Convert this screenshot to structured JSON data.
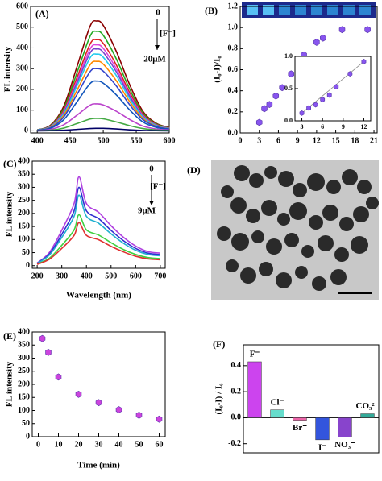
{
  "chart_data": [
    {
      "type": "line",
      "panel_label": "(A)",
      "ylabel": "FL intensity",
      "annotations": [
        "0",
        "[F⁻]",
        "20μM"
      ],
      "x": [
        400,
        420,
        440,
        460,
        480,
        490,
        500,
        520,
        540,
        560,
        580,
        600
      ],
      "xlim": [
        390,
        600
      ],
      "xticks": [
        400,
        450,
        500,
        550,
        600
      ],
      "ylim": [
        -10,
        600
      ],
      "yticks": [
        0,
        100,
        200,
        300,
        400,
        500,
        600
      ],
      "series": [
        {
          "color": "#8b0000",
          "values": [
            5,
            27,
            117,
            307,
            504,
            530,
            509,
            382,
            223,
            95,
            37,
            16
          ]
        },
        {
          "color": "#22aa22",
          "values": [
            5,
            24,
            106,
            278,
            456,
            480,
            461,
            346,
            202,
            86,
            34,
            14
          ]
        },
        {
          "color": "#dd2222",
          "values": [
            4,
            22,
            97,
            255,
            418,
            440,
            422,
            317,
            185,
            79,
            31,
            13
          ]
        },
        {
          "color": "#dd44dd",
          "values": [
            4,
            21,
            91,
            241,
            394,
            415,
            398,
            299,
            174,
            75,
            29,
            12
          ]
        },
        {
          "color": "#7744cc",
          "values": [
            4,
            20,
            87,
            229,
            375,
            395,
            379,
            284,
            166,
            71,
            28,
            12
          ]
        },
        {
          "color": "#22ccee",
          "values": [
            4,
            19,
            81,
            215,
            352,
            370,
            355,
            266,
            155,
            67,
            26,
            11
          ]
        },
        {
          "color": "#ff8800",
          "values": [
            3,
            17,
            74,
            194,
            318,
            335,
            322,
            241,
            141,
            60,
            23,
            10
          ]
        },
        {
          "color": "#3344cc",
          "values": [
            3,
            15,
            66,
            174,
            285,
            300,
            288,
            216,
            126,
            54,
            21,
            9
          ]
        },
        {
          "color": "#1155bb",
          "values": [
            2,
            12,
            53,
            139,
            228,
            240,
            230,
            173,
            101,
            43,
            17,
            7
          ]
        },
        {
          "color": "#bb44cc",
          "values": [
            1,
            7,
            29,
            75,
            124,
            130,
            125,
            94,
            55,
            23,
            9,
            4
          ]
        },
        {
          "color": "#44aa44",
          "values": [
            1,
            3,
            13,
            35,
            57,
            60,
            58,
            43,
            25,
            11,
            4,
            2
          ]
        },
        {
          "color": "#000066",
          "values": [
            0,
            1,
            3,
            7,
            11,
            12,
            12,
            9,
            5,
            2,
            1,
            0
          ]
        }
      ]
    },
    {
      "type": "scatter",
      "panel_label": "(B)",
      "ylabel": "(I₀-I)/I₀",
      "color": "#8855ee",
      "x": [
        3,
        3.8,
        4.6,
        5.6,
        6.6,
        8,
        10,
        12,
        13,
        16,
        20
      ],
      "values": [
        0.1,
        0.23,
        0.27,
        0.35,
        0.43,
        0.56,
        0.74,
        0.86,
        0.9,
        0.98,
        0.98
      ],
      "xlim": [
        0,
        21.5
      ],
      "xticks": [
        0,
        3,
        6,
        9,
        12,
        15,
        18,
        21
      ],
      "ylim": [
        0,
        1.2
      ],
      "yticks": [
        {
          "value": 0,
          "label": "0.0"
        },
        0.2,
        0.4,
        0.6,
        0.8,
        {
          "value": 1,
          "label": "1.0"
        },
        1.2
      ],
      "inset": {
        "type": "scatter",
        "color": "#8855ee",
        "x": [
          3,
          4,
          5,
          6,
          7,
          8,
          10,
          12
        ],
        "values": [
          0.12,
          0.2,
          0.25,
          0.33,
          0.4,
          0.53,
          0.73,
          0.92
        ],
        "xlim": [
          2,
          13
        ],
        "xticks": [
          3,
          6,
          9,
          12
        ],
        "ylim": [
          0,
          1
        ],
        "yticks": [
          {
            "value": 0,
            "label": "0.0"
          },
          0.5,
          {
            "value": 1,
            "label": "1.0"
          }
        ]
      }
    },
    {
      "type": "line",
      "panel_label": "(C)",
      "ylabel": "FL intensity",
      "xlabel": "Wavelength (nm)",
      "annotations": [
        "0",
        "[F⁻]",
        "9μM"
      ],
      "x": [
        200,
        250,
        300,
        350,
        370,
        400,
        450,
        500,
        550,
        600,
        650,
        700
      ],
      "xlim": [
        180,
        720
      ],
      "xticks": [
        200,
        300,
        400,
        500,
        600,
        700
      ],
      "ylim": [
        -10,
        400
      ],
      "yticks": [
        0,
        50,
        100,
        150,
        200,
        250,
        300,
        350,
        400
      ],
      "series": [
        {
          "color": "#b040e0",
          "values": [
            10,
            51,
            136,
            238,
            340,
            238,
            204,
            153,
            109,
            75,
            54,
            48
          ]
        },
        {
          "color": "#3030d0",
          "values": [
            9,
            45,
            120,
            210,
            300,
            210,
            180,
            135,
            96,
            66,
            48,
            42
          ]
        },
        {
          "color": "#20b0d0",
          "values": [
            8,
            41,
            108,
            189,
            270,
            189,
            162,
            122,
            86,
            59,
            43,
            38
          ]
        },
        {
          "color": "#40d040",
          "values": [
            6,
            29,
            78,
            137,
            195,
            137,
            117,
            88,
            62,
            43,
            31,
            27
          ]
        },
        {
          "color": "#e03030",
          "values": [
            5,
            25,
            66,
            116,
            165,
            116,
            99,
            74,
            53,
            36,
            26,
            23
          ]
        }
      ]
    },
    {
      "type": "image",
      "panel_label": "(D)"
    },
    {
      "type": "scatter",
      "panel_label": "(E)",
      "ylabel": "FL intensity",
      "xlabel": "Time (min)",
      "color": "#cc44dd",
      "x": [
        2,
        5,
        10,
        20,
        30,
        40,
        50,
        60
      ],
      "values": [
        375,
        322,
        228,
        162,
        130,
        103,
        82,
        67
      ],
      "xlim": [
        -3,
        63
      ],
      "xticks": [
        0,
        10,
        20,
        30,
        40,
        50,
        60
      ],
      "ylim": [
        0,
        400
      ],
      "yticks": [
        0,
        50,
        100,
        150,
        200,
        250,
        300,
        350,
        400
      ]
    },
    {
      "type": "bar",
      "panel_label": "(F)",
      "ylabel": "(I₀-I) / I₀",
      "categories": [
        "F⁻",
        "Cl⁻",
        "Br⁻",
        "I⁻",
        "NO₃⁻",
        "CO₃²⁻"
      ],
      "values": [
        0.43,
        0.06,
        -0.02,
        -0.17,
        -0.15,
        0.03
      ],
      "colors": [
        "#cc44ee",
        "#66ddcc",
        "#ee66aa",
        "#3355dd",
        "#8844cc",
        "#33aa99"
      ],
      "ylim": [
        -0.27,
        0.56
      ],
      "yticks": [
        -0.2,
        {
          "value": 0,
          "label": "0.0"
        },
        0.2,
        0.4
      ]
    }
  ]
}
